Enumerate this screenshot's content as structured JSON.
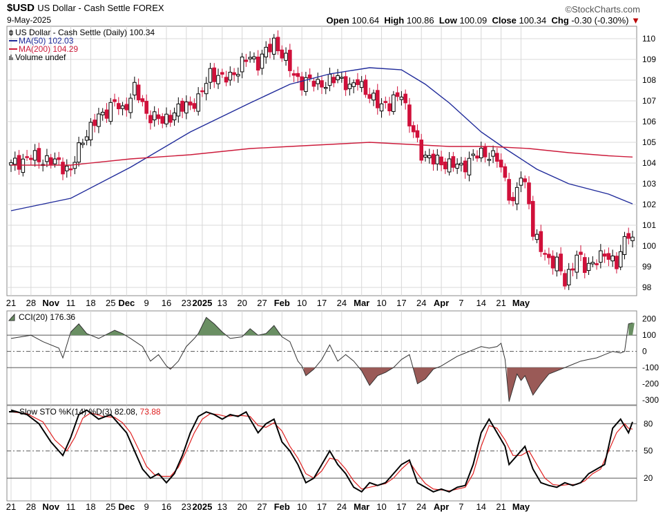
{
  "header": {
    "symbol": "$USD",
    "name": "US Dollar - Cash Settle",
    "exchange": "FOREX",
    "date": "9-May-2025",
    "brand": "©StockCharts.com",
    "ohlc": {
      "open_label": "Open",
      "open": "100.64",
      "high_label": "High",
      "high": "100.86",
      "low_label": "Low",
      "low": "100.09",
      "close_label": "Close",
      "close": "100.34",
      "chg_label": "Chg",
      "chg": "-0.30 (-0.30%)"
    }
  },
  "colors": {
    "up": "#000000",
    "down": "#d0103a",
    "ma50": "#1f2a9a",
    "ma200": "#cc1a3a",
    "cci_pos": "#6a8f63",
    "cci_neg": "#9a5a57",
    "stoK": "#000000",
    "stoD": "#e02020",
    "grid": "#d8d8d8"
  },
  "chart_data": [
    {
      "type": "candlestick",
      "legend": [
        {
          "label": "US Dollar - Cash Settle (Daily) 100.34",
          "icon": "candle-icon"
        },
        {
          "label": "MA(50) 102.03",
          "color": "#1f2a9a"
        },
        {
          "label": "MA(200) 104.29",
          "color": "#cc1a3a"
        },
        {
          "label": "Volume undef",
          "icon": "volume-icon"
        }
      ],
      "ylim": [
        97.6,
        110.6
      ],
      "yticks": [
        98,
        99,
        100,
        101,
        102,
        103,
        104,
        105,
        106,
        107,
        108,
        109,
        110
      ],
      "x_tick_labels": [
        "21",
        "28",
        "Nov",
        "11",
        "18",
        "25",
        "Dec",
        "9",
        "16",
        "23",
        "2025",
        "13",
        "20",
        "27",
        "Feb",
        "10",
        "17",
        "24",
        "Mar",
        "10",
        "17",
        "24",
        "Apr",
        "7",
        "14",
        "21",
        "May"
      ],
      "x_bold": [
        "Nov",
        "Dec",
        "2025",
        "Feb",
        "Mar",
        "Apr",
        "May"
      ],
      "close_path": [
        [
          0,
          103.9
        ],
        [
          5,
          104.3
        ],
        [
          12,
          104.0
        ],
        [
          15,
          103.6
        ],
        [
          18,
          105.2
        ],
        [
          22,
          106.2
        ],
        [
          26,
          106.9
        ],
        [
          28,
          106.5
        ],
        [
          31,
          107.6
        ],
        [
          34,
          106.4
        ],
        [
          38,
          106.0
        ],
        [
          40,
          106.3
        ],
        [
          44,
          106.8
        ],
        [
          47,
          107.0
        ],
        [
          50,
          108.4
        ],
        [
          53,
          108.0
        ],
        [
          57,
          108.5
        ],
        [
          60,
          109.2
        ],
        [
          62,
          108.8
        ],
        [
          66,
          109.9
        ],
        [
          68,
          109.2
        ],
        [
          70,
          108.6
        ],
        [
          73,
          107.8
        ],
        [
          76,
          108.0
        ],
        [
          79,
          107.7
        ],
        [
          82,
          108.3
        ],
        [
          85,
          107.5
        ],
        [
          87,
          108.1
        ],
        [
          90,
          107.1
        ],
        [
          93,
          106.9
        ],
        [
          95,
          106.7
        ],
        [
          98,
          107.5
        ],
        [
          100,
          105.9
        ],
        [
          103,
          104.5
        ],
        [
          106,
          104.1
        ],
        [
          109,
          104.0
        ],
        [
          113,
          103.8
        ],
        [
          116,
          104.3
        ],
        [
          119,
          104.5
        ],
        [
          122,
          104.2
        ],
        [
          124,
          103.2
        ],
        [
          126,
          102.0
        ],
        [
          128,
          103.4
        ],
        [
          130,
          102.3
        ],
        [
          131,
          100.6
        ],
        [
          134,
          99.5
        ],
        [
          137,
          99.2
        ],
        [
          139,
          98.2
        ],
        [
          142,
          99.6
        ],
        [
          144,
          98.9
        ],
        [
          147,
          99.4
        ],
        [
          150,
          99.5
        ],
        [
          152,
          99.2
        ],
        [
          155,
          100.6
        ],
        [
          156,
          100.34
        ]
      ],
      "n_bars": 157,
      "ma50": {
        "values": [
          [
            0,
            101.7
          ],
          [
            15,
            102.3
          ],
          [
            30,
            103.8
          ],
          [
            45,
            105.5
          ],
          [
            60,
            106.9
          ],
          [
            70,
            107.8
          ],
          [
            80,
            108.3
          ],
          [
            90,
            108.6
          ],
          [
            98,
            108.5
          ],
          [
            104,
            107.8
          ],
          [
            110,
            106.9
          ],
          [
            118,
            105.5
          ],
          [
            124,
            104.7
          ],
          [
            132,
            103.7
          ],
          [
            140,
            103.0
          ],
          [
            150,
            102.5
          ],
          [
            156,
            102.03
          ]
        ]
      },
      "ma200": {
        "values": [
          [
            0,
            103.9
          ],
          [
            15,
            103.9
          ],
          [
            30,
            104.2
          ],
          [
            45,
            104.4
          ],
          [
            60,
            104.7
          ],
          [
            70,
            104.8
          ],
          [
            80,
            104.9
          ],
          [
            90,
            105.0
          ],
          [
            100,
            104.9
          ],
          [
            110,
            104.8
          ],
          [
            120,
            104.8
          ],
          [
            130,
            104.7
          ],
          [
            140,
            104.5
          ],
          [
            150,
            104.35
          ],
          [
            156,
            104.29
          ]
        ]
      }
    },
    {
      "type": "area",
      "name": "CCI(20)",
      "label": "CCI(20) 176.36",
      "ylim": [
        -330,
        250
      ],
      "yticks": [
        -300,
        -200,
        -100,
        0,
        100,
        200
      ],
      "lines": [
        100,
        0,
        -100
      ],
      "values": [
        [
          0,
          80
        ],
        [
          5,
          100
        ],
        [
          8,
          60
        ],
        [
          12,
          20
        ],
        [
          13,
          -40
        ],
        [
          15,
          120
        ],
        [
          17,
          170
        ],
        [
          19,
          110
        ],
        [
          22,
          80
        ],
        [
          26,
          130
        ],
        [
          28,
          110
        ],
        [
          30,
          80
        ],
        [
          33,
          30
        ],
        [
          35,
          -60
        ],
        [
          37,
          -20
        ],
        [
          39,
          -90
        ],
        [
          40,
          -110
        ],
        [
          42,
          -60
        ],
        [
          44,
          30
        ],
        [
          46,
          80
        ],
        [
          47,
          110
        ],
        [
          49,
          210
        ],
        [
          51,
          170
        ],
        [
          53,
          120
        ],
        [
          55,
          80
        ],
        [
          58,
          90
        ],
        [
          60,
          140
        ],
        [
          62,
          100
        ],
        [
          64,
          110
        ],
        [
          66,
          160
        ],
        [
          68,
          90
        ],
        [
          70,
          60
        ],
        [
          72,
          -60
        ],
        [
          73,
          -90
        ],
        [
          74,
          -150
        ],
        [
          76,
          -110
        ],
        [
          78,
          -50
        ],
        [
          80,
          40
        ],
        [
          82,
          -60
        ],
        [
          84,
          -20
        ],
        [
          86,
          -60
        ],
        [
          88,
          -120
        ],
        [
          90,
          -210
        ],
        [
          92,
          -150
        ],
        [
          94,
          -130
        ],
        [
          96,
          -100
        ],
        [
          98,
          -50
        ],
        [
          100,
          -20
        ],
        [
          102,
          -200
        ],
        [
          104,
          -170
        ],
        [
          106,
          -110
        ],
        [
          108,
          -90
        ],
        [
          110,
          -60
        ],
        [
          112,
          -30
        ],
        [
          114,
          -10
        ],
        [
          116,
          10
        ],
        [
          118,
          30
        ],
        [
          120,
          20
        ],
        [
          122,
          30
        ],
        [
          123,
          50
        ],
        [
          124,
          -50
        ],
        [
          125,
          -310
        ],
        [
          127,
          -140
        ],
        [
          128,
          -180
        ],
        [
          129,
          -150
        ],
        [
          131,
          -270
        ],
        [
          133,
          -200
        ],
        [
          135,
          -140
        ],
        [
          137,
          -120
        ],
        [
          139,
          -100
        ],
        [
          141,
          -80
        ],
        [
          143,
          -60
        ],
        [
          145,
          -50
        ],
        [
          147,
          -40
        ],
        [
          149,
          -20
        ],
        [
          151,
          0
        ],
        [
          153,
          -10
        ],
        [
          154,
          0
        ],
        [
          155,
          170
        ],
        [
          156,
          176
        ]
      ]
    },
    {
      "type": "line",
      "name": "Slow STO",
      "label_prefix": "Slow STO %K(14) %D(3) ",
      "k_value": "82.08",
      "d_value": "73.88",
      "ylim": [
        -5,
        100
      ],
      "yticks": [
        20,
        50,
        80
      ],
      "lines": [
        80,
        50,
        20
      ],
      "k": [
        [
          0,
          95
        ],
        [
          4,
          90
        ],
        [
          7,
          80
        ],
        [
          10,
          60
        ],
        [
          13,
          45
        ],
        [
          15,
          65
        ],
        [
          17,
          90
        ],
        [
          19,
          95
        ],
        [
          22,
          85
        ],
        [
          25,
          90
        ],
        [
          27,
          80
        ],
        [
          29,
          70
        ],
        [
          31,
          50
        ],
        [
          33,
          30
        ],
        [
          35,
          20
        ],
        [
          37,
          25
        ],
        [
          39,
          15
        ],
        [
          41,
          25
        ],
        [
          43,
          45
        ],
        [
          45,
          70
        ],
        [
          47,
          88
        ],
        [
          49,
          93
        ],
        [
          51,
          90
        ],
        [
          53,
          85
        ],
        [
          55,
          90
        ],
        [
          57,
          88
        ],
        [
          59,
          93
        ],
        [
          60,
          85
        ],
        [
          62,
          70
        ],
        [
          64,
          80
        ],
        [
          66,
          85
        ],
        [
          68,
          60
        ],
        [
          70,
          50
        ],
        [
          72,
          35
        ],
        [
          74,
          15
        ],
        [
          76,
          20
        ],
        [
          78,
          35
        ],
        [
          80,
          50
        ],
        [
          82,
          35
        ],
        [
          84,
          25
        ],
        [
          86,
          10
        ],
        [
          88,
          5
        ],
        [
          90,
          15
        ],
        [
          92,
          12
        ],
        [
          94,
          15
        ],
        [
          96,
          25
        ],
        [
          98,
          35
        ],
        [
          100,
          40
        ],
        [
          102,
          15
        ],
        [
          104,
          10
        ],
        [
          106,
          5
        ],
        [
          108,
          8
        ],
        [
          110,
          5
        ],
        [
          112,
          10
        ],
        [
          114,
          12
        ],
        [
          116,
          35
        ],
        [
          118,
          70
        ],
        [
          120,
          85
        ],
        [
          122,
          70
        ],
        [
          124,
          55
        ],
        [
          125,
          35
        ],
        [
          127,
          45
        ],
        [
          129,
          55
        ],
        [
          131,
          30
        ],
        [
          133,
          15
        ],
        [
          135,
          12
        ],
        [
          137,
          10
        ],
        [
          139,
          15
        ],
        [
          141,
          12
        ],
        [
          143,
          15
        ],
        [
          145,
          25
        ],
        [
          147,
          30
        ],
        [
          149,
          35
        ],
        [
          151,
          75
        ],
        [
          153,
          85
        ],
        [
          155,
          70
        ],
        [
          156,
          82
        ]
      ],
      "d": [
        [
          0,
          93
        ],
        [
          4,
          91
        ],
        [
          8,
          82
        ],
        [
          11,
          62
        ],
        [
          14,
          50
        ],
        [
          16,
          65
        ],
        [
          18,
          86
        ],
        [
          20,
          92
        ],
        [
          23,
          88
        ],
        [
          26,
          87
        ],
        [
          28,
          81
        ],
        [
          30,
          70
        ],
        [
          32,
          52
        ],
        [
          34,
          33
        ],
        [
          36,
          24
        ],
        [
          38,
          22
        ],
        [
          40,
          22
        ],
        [
          42,
          32
        ],
        [
          44,
          50
        ],
        [
          46,
          70
        ],
        [
          48,
          85
        ],
        [
          50,
          91
        ],
        [
          52,
          90
        ],
        [
          54,
          88
        ],
        [
          56,
          89
        ],
        [
          58,
          89
        ],
        [
          60,
          88
        ],
        [
          62,
          78
        ],
        [
          64,
          76
        ],
        [
          66,
          81
        ],
        [
          68,
          72
        ],
        [
          70,
          55
        ],
        [
          72,
          42
        ],
        [
          74,
          25
        ],
        [
          76,
          20
        ],
        [
          78,
          28
        ],
        [
          80,
          42
        ],
        [
          82,
          40
        ],
        [
          84,
          30
        ],
        [
          86,
          17
        ],
        [
          88,
          8
        ],
        [
          90,
          10
        ],
        [
          92,
          12
        ],
        [
          94,
          14
        ],
        [
          96,
          20
        ],
        [
          98,
          30
        ],
        [
          100,
          38
        ],
        [
          102,
          25
        ],
        [
          104,
          14
        ],
        [
          106,
          8
        ],
        [
          108,
          7
        ],
        [
          110,
          6
        ],
        [
          112,
          8
        ],
        [
          114,
          10
        ],
        [
          116,
          25
        ],
        [
          118,
          55
        ],
        [
          120,
          78
        ],
        [
          122,
          75
        ],
        [
          124,
          62
        ],
        [
          126,
          45
        ],
        [
          128,
          45
        ],
        [
          130,
          50
        ],
        [
          132,
          35
        ],
        [
          134,
          20
        ],
        [
          136,
          13
        ],
        [
          138,
          12
        ],
        [
          140,
          13
        ],
        [
          142,
          13
        ],
        [
          144,
          17
        ],
        [
          146,
          25
        ],
        [
          148,
          30
        ],
        [
          150,
          50
        ],
        [
          152,
          70
        ],
        [
          154,
          80
        ],
        [
          155,
          75
        ],
        [
          156,
          74
        ]
      ]
    }
  ]
}
